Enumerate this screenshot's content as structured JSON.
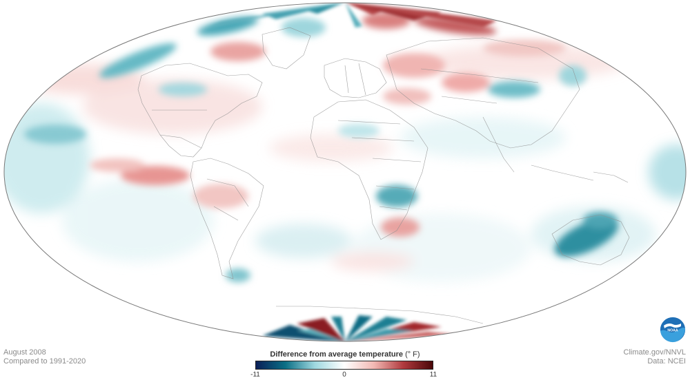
{
  "caption": {
    "date": "August 2008",
    "baseline": "Compared to 1991-2020"
  },
  "credits": {
    "source": "Climate.gov/NNVL",
    "data": "Data: NCEI"
  },
  "legend": {
    "title": "Difference from average temperature",
    "units": "(° F)",
    "min_label": "-11",
    "mid_label": "0",
    "max_label": "11",
    "min": -11,
    "max": 11,
    "colors": [
      "#0b1f57",
      "#0b6f85",
      "#9fd8e0",
      "#ffffff",
      "#f2b9b4",
      "#b03a3e",
      "#4a0708"
    ]
  },
  "logo": {
    "text": "NOAA",
    "icon": "noaa-logo-icon"
  },
  "map": {
    "projection": "Mollweide",
    "ocean_color": "#ffffff",
    "outline_color": "#777777",
    "boundary_color": "#8f8f8f"
  }
}
